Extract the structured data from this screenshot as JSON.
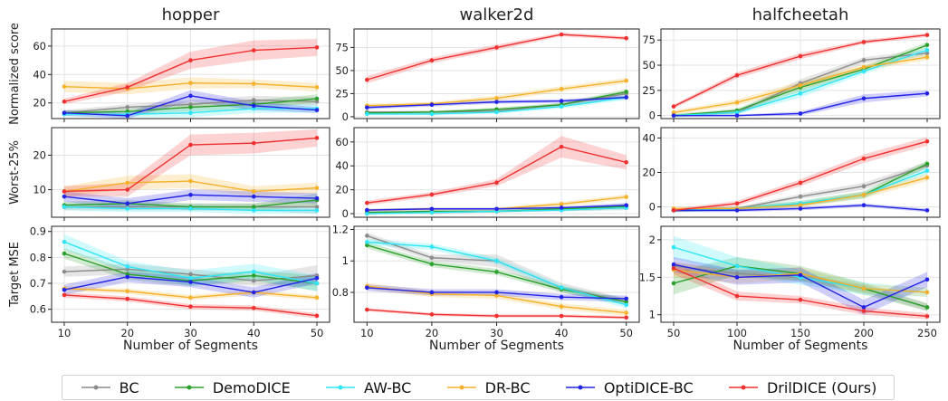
{
  "chart_data": {
    "type": "line",
    "series_styles": [
      {
        "name": "BC",
        "color": "#8c8c8c"
      },
      {
        "name": "DemoDICE",
        "color": "#2ca02c"
      },
      {
        "name": "AW-BC",
        "color": "#2ee6f5"
      },
      {
        "name": "DR-BC",
        "color": "#f5b12a"
      },
      {
        "name": "OptiDICE-BC",
        "color": "#2323e6"
      },
      {
        "name": "DrilDICE (Ours)",
        "color": "#f03030"
      }
    ],
    "columns": [
      {
        "title": "hopper",
        "x": [
          10,
          20,
          30,
          40,
          50
        ],
        "xticks": [
          "10",
          "20",
          "30",
          "40",
          "50"
        ]
      },
      {
        "title": "walker2d",
        "x": [
          10,
          20,
          30,
          40,
          50
        ],
        "xticks": [
          "10",
          "20",
          "30",
          "40",
          "50"
        ]
      },
      {
        "title": "halfcheetah",
        "x": [
          50,
          100,
          150,
          200,
          250
        ],
        "xticks": [
          "50",
          "100",
          "150",
          "200",
          "250"
        ]
      }
    ],
    "xlabel": "Number of Segments",
    "rows": [
      {
        "ylabel": "Normalized score"
      },
      {
        "ylabel": "Worst-25%"
      },
      {
        "ylabel": "Target MSE"
      }
    ],
    "panels": [
      {
        "row": 0,
        "col": 0,
        "ylim": [
          9,
          72
        ],
        "yticks": [
          20,
          40,
          60
        ],
        "series": [
          {
            "values": [
              13,
              17,
              19,
              22,
              21
            ],
            "err": [
              2,
              2,
              3,
              3,
              3
            ]
          },
          {
            "values": [
              13,
              14,
              17,
              19,
              23
            ],
            "err": [
              1.5,
              2,
              3,
              3,
              3
            ]
          },
          {
            "values": [
              12,
              12,
              13,
              16,
              16
            ],
            "err": [
              1.5,
              2,
              3,
              3,
              3
            ]
          },
          {
            "values": [
              31.5,
              30,
              34,
              33.5,
              31
            ],
            "err": [
              4,
              4,
              4,
              3,
              3
            ]
          },
          {
            "values": [
              13,
              11,
              25,
              18,
              15
            ],
            "err": [
              2,
              2,
              4,
              3,
              2
            ]
          },
          {
            "values": [
              21,
              31,
              50,
              57,
              59
            ],
            "err": [
              2,
              3,
              6,
              7,
              6
            ]
          }
        ]
      },
      {
        "row": 0,
        "col": 1,
        "ylim": [
          -2,
          95
        ],
        "yticks": [
          0,
          25,
          50,
          75
        ],
        "series": [
          {
            "values": [
              5,
              5,
              6,
              13,
              25
            ],
            "err": [
              1.5,
              1.5,
              2,
              2,
              3
            ]
          },
          {
            "values": [
              4,
              5,
              8,
              13,
              27
            ],
            "err": [
              1.5,
              1.5,
              2,
              2,
              3
            ]
          },
          {
            "values": [
              3,
              3,
              5,
              11,
              21
            ],
            "err": [
              1.5,
              1.5,
              2,
              2,
              3
            ]
          },
          {
            "values": [
              12,
              14,
              20,
              30,
              39
            ],
            "err": [
              2,
              2,
              3,
              3,
              3
            ]
          },
          {
            "values": [
              10,
              13,
              16,
              17,
              21
            ],
            "err": [
              2,
              2,
              2,
              2,
              2
            ]
          },
          {
            "values": [
              40,
              61,
              75,
              89,
              85
            ],
            "err": [
              4,
              3,
              3,
              2,
              2
            ]
          }
        ]
      },
      {
        "row": 0,
        "col": 2,
        "ylim": [
          -3,
          86
        ],
        "yticks": [
          0,
          25,
          50,
          75
        ],
        "series": [
          {
            "values": [
              0,
              3,
              32,
              55,
              62
            ],
            "err": [
              1.5,
              2,
              4,
              3,
              3
            ]
          },
          {
            "values": [
              0,
              5,
              28,
              46,
              70
            ],
            "err": [
              1.5,
              2,
              4,
              3,
              3
            ]
          },
          {
            "values": [
              0,
              3,
              22,
              44,
              65
            ],
            "err": [
              1.5,
              2,
              4,
              3,
              3
            ]
          },
          {
            "values": [
              3,
              13,
              30,
              48,
              58
            ],
            "err": [
              2,
              3,
              4,
              3,
              3
            ]
          },
          {
            "values": [
              0,
              0,
              2,
              17,
              22
            ],
            "err": [
              1,
              1,
              2,
              4,
              3
            ]
          },
          {
            "values": [
              9,
              40,
              59,
              73,
              80
            ],
            "err": [
              2,
              3,
              3,
              2,
              2
            ]
          }
        ]
      },
      {
        "row": 1,
        "col": 0,
        "ylim": [
          2,
          28
        ],
        "yticks": [
          10,
          20
        ],
        "series": [
          {
            "values": [
              5,
              5,
              5,
              5,
              5
            ],
            "err": [
              1,
              1,
              1,
              1,
              2
            ]
          },
          {
            "values": [
              5.5,
              6,
              5,
              5,
              7
            ],
            "err": [
              1,
              1,
              1,
              1,
              2
            ]
          },
          {
            "values": [
              5,
              4.5,
              4.5,
              4,
              4
            ],
            "err": [
              1,
              1,
              1,
              1,
              1
            ]
          },
          {
            "values": [
              9.5,
              12,
              12.5,
              9.5,
              10.5
            ],
            "err": [
              1.5,
              2,
              2,
              1.5,
              1.5
            ]
          },
          {
            "values": [
              8,
              6,
              8.5,
              8,
              7.5
            ],
            "err": [
              1.5,
              1.5,
              1.5,
              1.5,
              1.5
            ]
          },
          {
            "values": [
              9.5,
              10,
              23,
              23.5,
              25
            ],
            "err": [
              1.5,
              2,
              3,
              3,
              2.5
            ]
          }
        ]
      },
      {
        "row": 1,
        "col": 1,
        "ylim": [
          -3,
          72
        ],
        "yticks": [
          0,
          20,
          40,
          60
        ],
        "series": [
          {
            "values": [
              1,
              1,
              2,
              3,
              5
            ],
            "err": [
              1,
              1,
              1,
              1,
              2
            ]
          },
          {
            "values": [
              1,
              2,
              2,
              4,
              6
            ],
            "err": [
              1,
              1,
              1,
              1,
              2
            ]
          },
          {
            "values": [
              0,
              1,
              2,
              3,
              5
            ],
            "err": [
              1,
              1,
              1,
              1,
              2
            ]
          },
          {
            "values": [
              3,
              4,
              4,
              8,
              14
            ],
            "err": [
              1,
              1,
              1,
              2,
              2
            ]
          },
          {
            "values": [
              3,
              4,
              4,
              5,
              7
            ],
            "err": [
              1,
              1,
              1,
              1,
              2
            ]
          },
          {
            "values": [
              9,
              16,
              26,
              56,
              43
            ],
            "err": [
              2,
              2,
              3,
              9,
              6
            ]
          }
        ]
      },
      {
        "row": 1,
        "col": 2,
        "ylim": [
          -6,
          46
        ],
        "yticks": [
          0,
          20,
          40
        ],
        "series": [
          {
            "values": [
              -2,
              -1,
              6,
              12,
              24
            ],
            "err": [
              1,
              1,
              1.5,
              2,
              2
            ]
          },
          {
            "values": [
              -2,
              -1,
              2,
              7,
              25
            ],
            "err": [
              1,
              1,
              1.5,
              2,
              2
            ]
          },
          {
            "values": [
              -2,
              -1,
              2,
              7,
              21
            ],
            "err": [
              1,
              1,
              1.5,
              2,
              2
            ]
          },
          {
            "values": [
              -1,
              -1,
              1,
              7,
              17
            ],
            "err": [
              1,
              1,
              1.5,
              2,
              2
            ]
          },
          {
            "values": [
              -2,
              -2,
              -1,
              1,
              -2
            ],
            "err": [
              1,
              1,
              1,
              1,
              1
            ]
          },
          {
            "values": [
              -2,
              2,
              14,
              28,
              38
            ],
            "err": [
              1,
              1.5,
              2,
              2.5,
              2.5
            ]
          }
        ]
      },
      {
        "row": 2,
        "col": 0,
        "ylim": [
          0.55,
          0.92
        ],
        "yticks": [
          0.6,
          0.7,
          0.8,
          0.9
        ],
        "series": [
          {
            "values": [
              0.745,
              0.755,
              0.735,
              0.71,
              0.73
            ],
            "err": [
              0.02,
              0.02,
              0.02,
              0.02,
              0.04
            ]
          },
          {
            "values": [
              0.815,
              0.735,
              0.71,
              0.73,
              0.7
            ],
            "err": [
              0.02,
              0.02,
              0.02,
              0.02,
              0.03
            ]
          },
          {
            "values": [
              0.86,
              0.765,
              0.72,
              0.745,
              0.7
            ],
            "err": [
              0.03,
              0.02,
              0.03,
              0.03,
              0.03
            ]
          },
          {
            "values": [
              0.68,
              0.67,
              0.645,
              0.665,
              0.645
            ],
            "err": [
              0.01,
              0.01,
              0.01,
              0.01,
              0.01
            ]
          },
          {
            "values": [
              0.675,
              0.725,
              0.705,
              0.665,
              0.72
            ],
            "err": [
              0.02,
              0.02,
              0.02,
              0.02,
              0.02
            ]
          },
          {
            "values": [
              0.655,
              0.64,
              0.61,
              0.605,
              0.575
            ],
            "err": [
              0.01,
              0.01,
              0.01,
              0.01,
              0.01
            ]
          }
        ]
      },
      {
        "row": 2,
        "col": 1,
        "ylim": [
          0.61,
          1.22
        ],
        "yticks": [
          0.8,
          1.0,
          1.2
        ],
        "series": [
          {
            "values": [
              1.16,
              1.02,
              1.0,
              0.83,
              0.74
            ],
            "err": [
              0.02,
              0.02,
              0.04,
              0.03,
              0.02
            ]
          },
          {
            "values": [
              1.1,
              0.98,
              0.93,
              0.82,
              0.74
            ],
            "err": [
              0.02,
              0.02,
              0.02,
              0.02,
              0.02
            ]
          },
          {
            "values": [
              1.12,
              1.09,
              1.0,
              0.83,
              0.72
            ],
            "err": [
              0.02,
              0.02,
              0.02,
              0.02,
              0.02
            ]
          },
          {
            "values": [
              0.84,
              0.79,
              0.78,
              0.71,
              0.67
            ],
            "err": [
              0.02,
              0.02,
              0.02,
              0.02,
              0.02
            ]
          },
          {
            "values": [
              0.83,
              0.8,
              0.8,
              0.77,
              0.76
            ],
            "err": [
              0.02,
              0.02,
              0.02,
              0.02,
              0.02
            ]
          },
          {
            "values": [
              0.69,
              0.66,
              0.65,
              0.65,
              0.64
            ],
            "err": [
              0.01,
              0.01,
              0.01,
              0.01,
              0.01
            ]
          }
        ]
      },
      {
        "row": 2,
        "col": 2,
        "ylim": [
          0.9,
          2.18
        ],
        "yticks": [
          1.0,
          1.5,
          2.0
        ],
        "series": [
          {
            "values": [
              1.65,
              1.55,
              1.5,
              1.35,
              1.1
            ],
            "err": [
              0.05,
              0.05,
              0.05,
              0.05,
              0.05
            ]
          },
          {
            "values": [
              1.42,
              1.65,
              1.55,
              1.35,
              1.1
            ],
            "err": [
              0.15,
              0.12,
              0.1,
              0.08,
              0.05
            ]
          },
          {
            "values": [
              1.9,
              1.65,
              1.5,
              1.35,
              1.3
            ],
            "err": [
              0.15,
              0.12,
              0.1,
              0.08,
              0.06
            ]
          },
          {
            "values": [
              1.6,
              1.5,
              1.55,
              1.35,
              1.3
            ],
            "err": [
              0.1,
              0.08,
              0.08,
              0.06,
              0.06
            ]
          },
          {
            "values": [
              1.67,
              1.5,
              1.53,
              1.1,
              1.47
            ],
            "err": [
              0.1,
              0.1,
              0.1,
              0.1,
              0.1
            ]
          },
          {
            "values": [
              1.62,
              1.25,
              1.2,
              1.05,
              0.98
            ],
            "err": [
              0.08,
              0.06,
              0.05,
              0.05,
              0.04
            ]
          }
        ]
      }
    ]
  }
}
